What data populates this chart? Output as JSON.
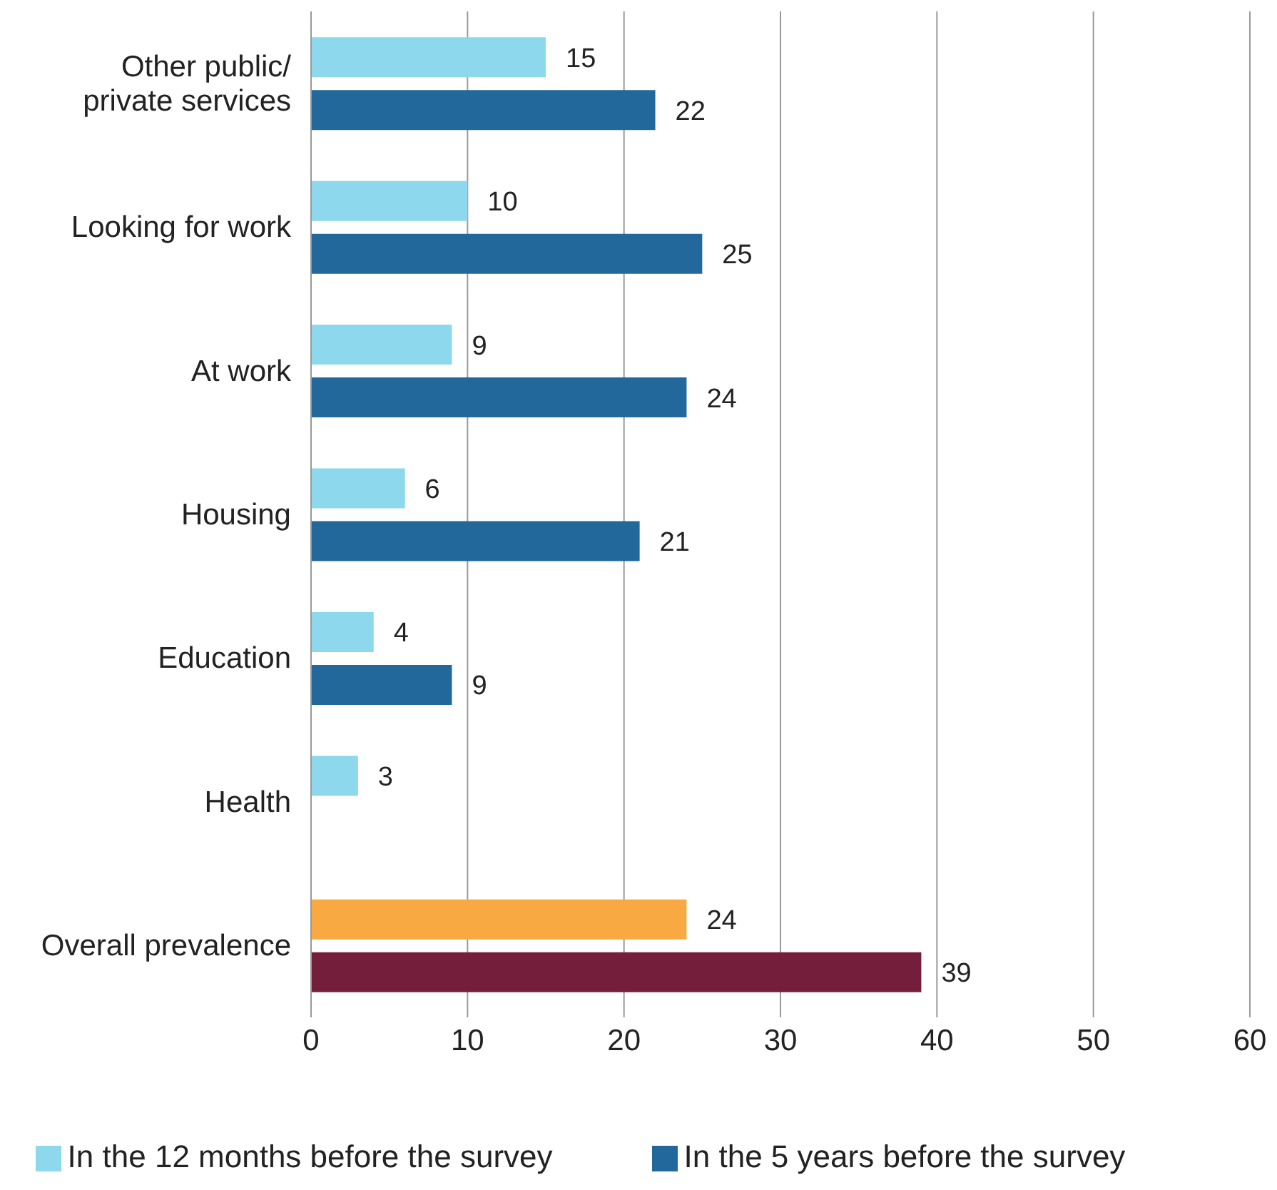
{
  "chart_data": {
    "type": "bar",
    "orientation": "horizontal",
    "categories": [
      "Other public/ private services",
      "Looking for work",
      "At work",
      "Housing",
      "Education",
      "Health",
      "Overall prevalence"
    ],
    "series": [
      {
        "name": "In the 12 months before the survey",
        "color": "#8dd8ec",
        "colors": [
          "#8dd8ec",
          "#8dd8ec",
          "#8dd8ec",
          "#8dd8ec",
          "#8dd8ec",
          "#8dd8ec",
          "#f9a942"
        ],
        "values": [
          15,
          10,
          9,
          6,
          4,
          3,
          24
        ]
      },
      {
        "name": "In the 5 years before the survey",
        "color": "#22689b",
        "colors": [
          "#22689b",
          "#22689b",
          "#22689b",
          "#22689b",
          "#22689b",
          "#22689b",
          "#751e3c"
        ],
        "values": [
          22,
          25,
          24,
          21,
          9,
          null,
          39
        ]
      }
    ],
    "xlim": [
      0,
      60
    ],
    "xticks": [
      0,
      10,
      20,
      30,
      40,
      50,
      60
    ],
    "grid": "x",
    "legend": "bottom",
    "data_labels": true
  }
}
